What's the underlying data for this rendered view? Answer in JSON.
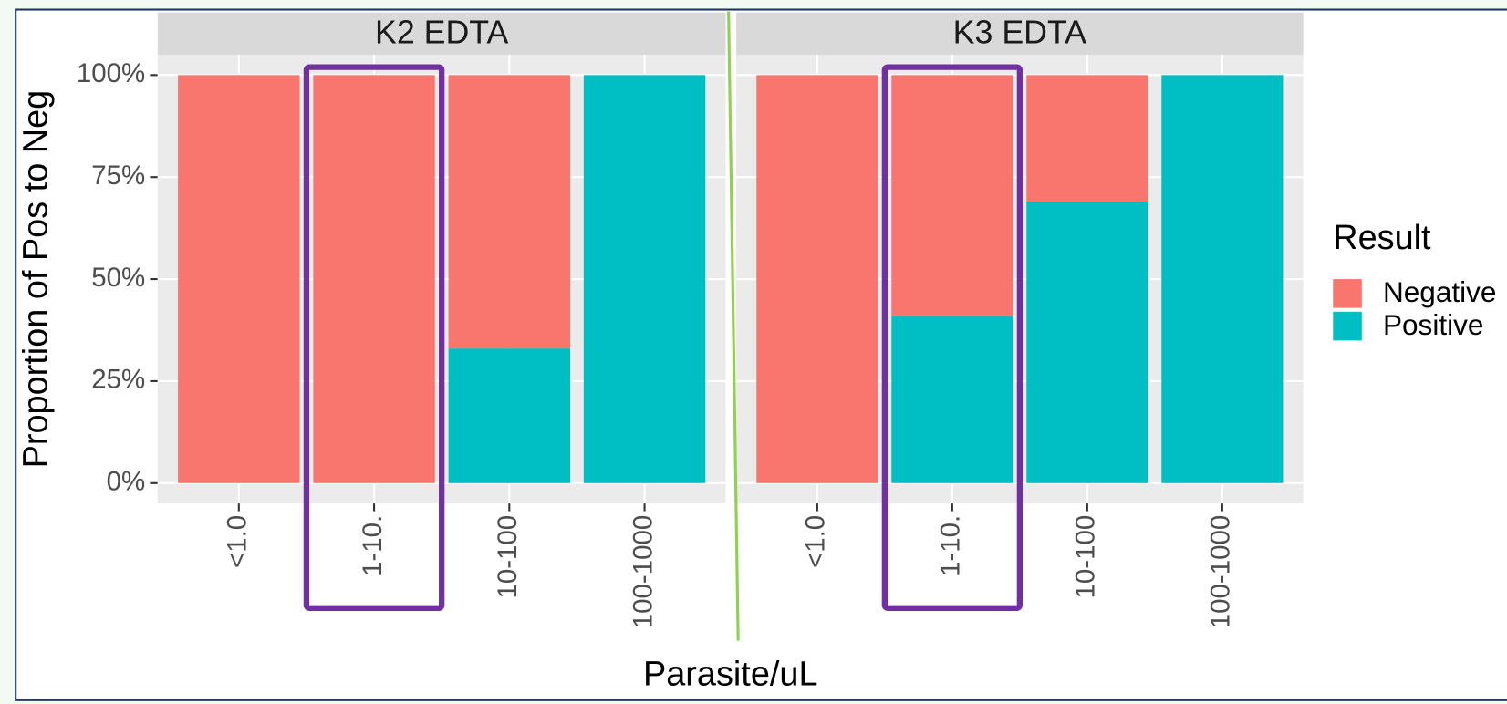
{
  "chart_data": {
    "type": "bar",
    "stacked": true,
    "ylabel": "Proportion of Pos to Neg",
    "xlabel": "Parasite/uL",
    "legend_title": "Result",
    "ylim": [
      -5,
      105
    ],
    "yticks": [
      {
        "value": 0,
        "label": "0%"
      },
      {
        "value": 25,
        "label": "25%"
      },
      {
        "value": 50,
        "label": "50%"
      },
      {
        "value": 75,
        "label": "75%"
      },
      {
        "value": 100,
        "label": "100%"
      }
    ],
    "grid": true,
    "panels": [
      {
        "title": "K2 EDTA",
        "categories": [
          "<1.0",
          "1-10.",
          "10-100",
          "100-1000"
        ],
        "series": [
          {
            "name": "Negative",
            "color": "#f8766d",
            "values": [
              100,
              100,
              67,
              0
            ]
          },
          {
            "name": "Positive",
            "color": "#00bfc4",
            "values": [
              0,
              0,
              33,
              100
            ]
          }
        ]
      },
      {
        "title": "K3 EDTA",
        "categories": [
          "<1.0",
          "1-10.",
          "10-100",
          "100-1000"
        ],
        "series": [
          {
            "name": "Negative",
            "color": "#f8766d",
            "values": [
              100,
              59,
              31,
              0
            ]
          },
          {
            "name": "Positive",
            "color": "#00bfc4",
            "values": [
              0,
              41,
              69,
              100
            ]
          }
        ]
      }
    ]
  }
}
